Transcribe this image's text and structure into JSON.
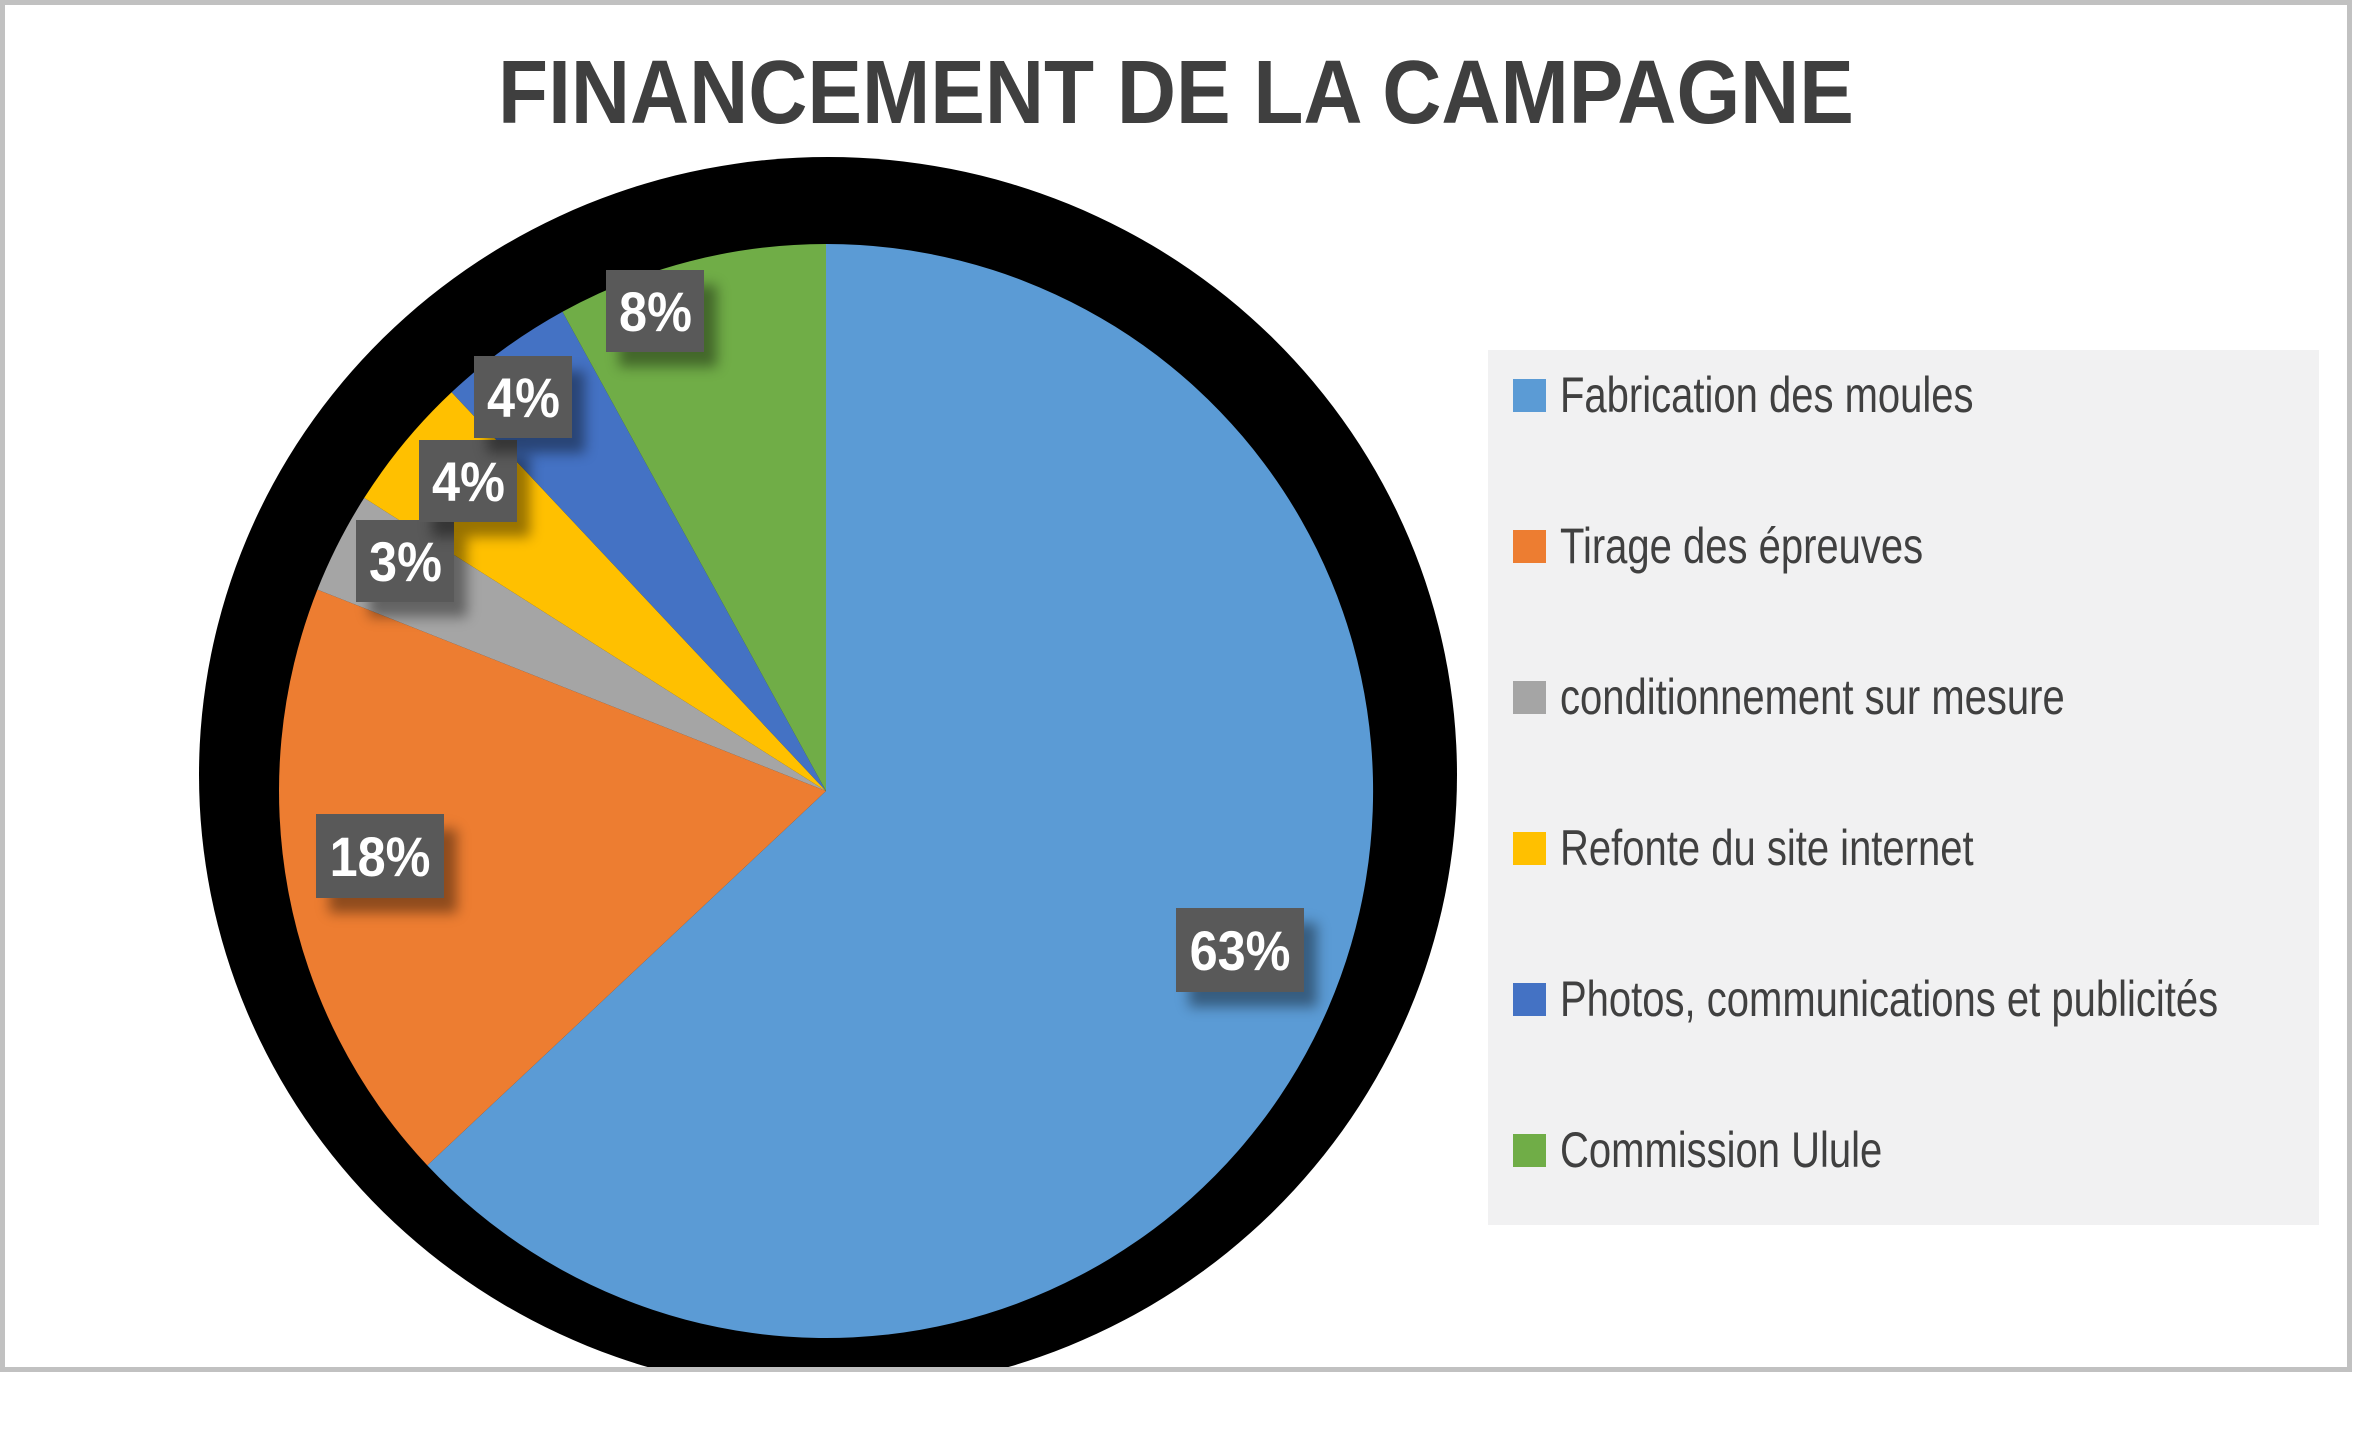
{
  "chart_data": {
    "type": "pie",
    "title": "FINANCEMENT DE LA CAMPAGNE",
    "title_color": "#3F3F3F",
    "legend_position": "right",
    "legend_background": "#F1F1F2",
    "legend_text_color": "#404040",
    "direction": "clockwise",
    "start_angle_deg": 0,
    "ring_color": "#000000",
    "series": [
      {
        "label": "Fabrication des moules",
        "value_pct": 63,
        "color": "#5B9BD5"
      },
      {
        "label": "Tirage des épreuves",
        "value_pct": 18,
        "color": "#ED7D31"
      },
      {
        "label": "conditionnement sur mesure",
        "value_pct": 3,
        "color": "#A5A5A5"
      },
      {
        "label": "Refonte du site internet",
        "value_pct": 4,
        "color": "#FFC000"
      },
      {
        "label": "Photos, communications et publicités",
        "value_pct": 4,
        "color": "#4472C4"
      },
      {
        "label": "Commission Ulule",
        "value_pct": 8,
        "color": "#70AD47"
      }
    ],
    "data_labels": [
      "63%",
      "18%",
      "3%",
      "4%",
      "4%",
      "8%"
    ],
    "label_style": {
      "background": "#595959",
      "text_color": "#FFFFFF"
    }
  }
}
